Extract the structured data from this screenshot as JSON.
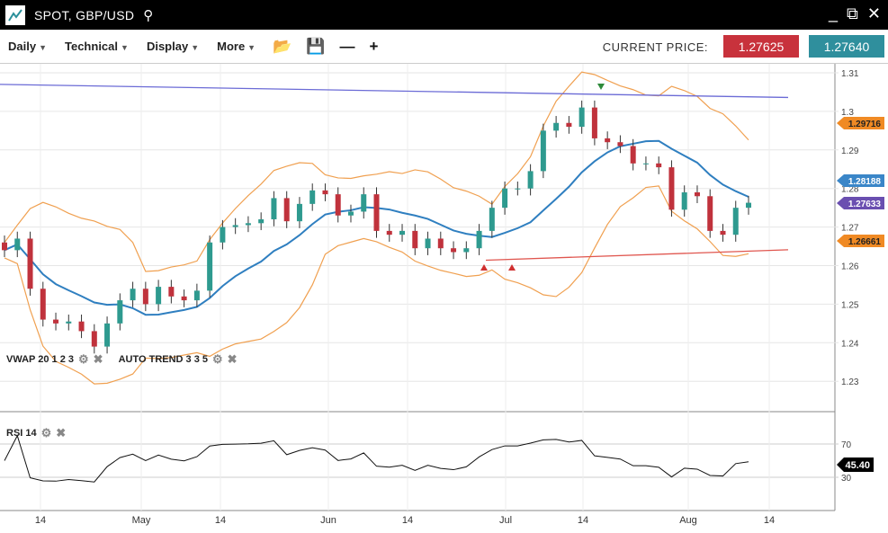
{
  "titlebar": {
    "title": "SPOT, GBP/USD",
    "icons": [
      "chart-logo-icon",
      "search-icon",
      "minimize-icon",
      "popout-icon",
      "close-icon"
    ]
  },
  "toolbar": {
    "menus": [
      "Daily",
      "Technical",
      "Display",
      "More"
    ],
    "icons": [
      "open-folder-icon",
      "save-icon",
      "zoom-out-icon",
      "zoom-in-icon"
    ],
    "current_price_label": "CURRENT PRICE:",
    "bid": "1.27625",
    "ask": "1.27640",
    "bid_color": "#c8323c",
    "ask_color": "#2f8f9d"
  },
  "indicators": {
    "vwap": "VWAP 20 1 2 3",
    "auto_trend": "AUTO TREND 3 3 5",
    "rsi": "RSI 14"
  },
  "chart_data": {
    "type": "candlestick",
    "price_axis": {
      "ticks": [
        "1.31",
        "1.3",
        "1.29",
        "1.28",
        "1.27",
        "1.26",
        "1.25",
        "1.24",
        "1.23"
      ],
      "range": [
        1.2215,
        1.312
      ]
    },
    "rsi_axis": {
      "ticks": [
        "70",
        "30"
      ]
    },
    "x_ticks": [
      "14",
      "May",
      "14",
      "Jun",
      "14",
      "Jul",
      "14",
      "Aug",
      "14"
    ],
    "closes": [
      1.264,
      1.267,
      1.254,
      1.246,
      1.245,
      1.2455,
      1.243,
      1.239,
      1.245,
      1.251,
      1.254,
      1.25,
      1.2545,
      1.252,
      1.251,
      1.2535,
      1.266,
      1.27,
      1.2705,
      1.271,
      1.272,
      1.2775,
      1.2715,
      1.276,
      1.2795,
      1.2785,
      1.273,
      1.274,
      1.2785,
      1.269,
      1.268,
      1.269,
      1.2645,
      1.267,
      1.2645,
      1.2635,
      1.2645,
      1.269,
      1.275,
      1.28,
      1.28,
      1.2845,
      1.295,
      1.297,
      1.296,
      1.301,
      1.293,
      1.292,
      1.291,
      1.2865,
      1.2865,
      1.2855,
      1.2745,
      1.279,
      1.278,
      1.269,
      1.268,
      1.275,
      1.2763
    ],
    "tags": [
      {
        "value": "1.29716",
        "color": "#f08a24"
      },
      {
        "value": "1.28188",
        "color": "#3a86c8"
      },
      {
        "value": "1.27633",
        "color": "#6a4fb0"
      },
      {
        "value": "1.26661",
        "color": "#f08a24"
      }
    ],
    "rsi_last": "45.40",
    "trend_lines": [
      {
        "from": 1.307,
        "to": 1.3036,
        "color": "#6b6bd6"
      },
      {
        "from": 1.2614,
        "to": 1.2641,
        "color": "#e0564f"
      }
    ]
  }
}
